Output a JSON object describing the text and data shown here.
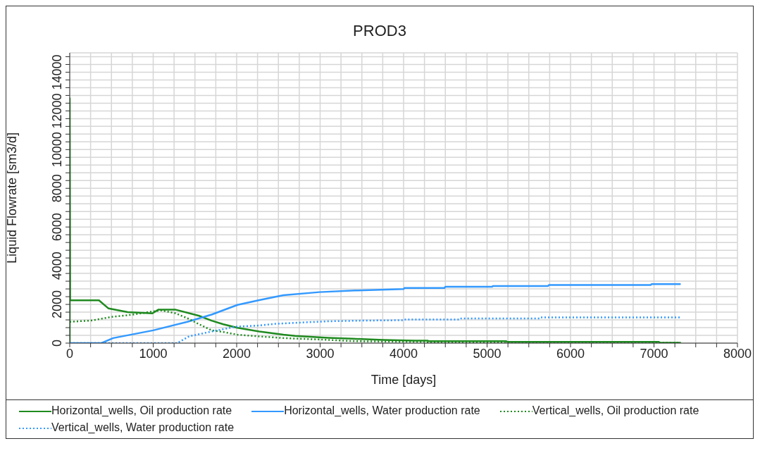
{
  "chart_data": {
    "type": "line",
    "title": "PROD3",
    "xlabel": "Time [days]",
    "ylabel": "Liquid Flowrate [sm3/d]",
    "xlim": [
      0,
      8000
    ],
    "xticks": [
      0,
      {
        "value": 250,
        "label": null
      },
      {
        "value": 500,
        "label": null
      },
      {
        "value": 750,
        "label": null
      },
      1000,
      {
        "value": 1250,
        "label": null
      },
      {
        "value": 1500,
        "label": null
      },
      {
        "value": 1750,
        "label": null
      },
      2000,
      {
        "value": 2250,
        "label": null
      },
      {
        "value": 2500,
        "label": null
      },
      {
        "value": 2750,
        "label": null
      },
      3000,
      {
        "value": 3250,
        "label": null
      },
      {
        "value": 3500,
        "label": null
      },
      {
        "value": 3750,
        "label": null
      },
      4000,
      {
        "value": 4250,
        "label": null
      },
      {
        "value": 4500,
        "label": null
      },
      {
        "value": 4750,
        "label": null
      },
      5000,
      {
        "value": 5250,
        "label": null
      },
      {
        "value": 5500,
        "label": null
      },
      {
        "value": 5750,
        "label": null
      },
      6000,
      {
        "value": 6250,
        "label": null
      },
      {
        "value": 6500,
        "label": null
      },
      {
        "value": 6750,
        "label": null
      },
      7000,
      {
        "value": 7250,
        "label": null
      },
      {
        "value": 7500,
        "label": null
      },
      {
        "value": 7750,
        "label": null
      },
      8000
    ],
    "ylim": [
      0,
      15000
    ],
    "yticks": [
      0,
      {
        "value": 400,
        "label": null
      },
      {
        "value": 800,
        "label": null
      },
      {
        "value": 1200,
        "label": null
      },
      {
        "value": 1600,
        "label": null
      },
      2000,
      {
        "value": 2400,
        "label": null
      },
      {
        "value": 2800,
        "label": null
      },
      {
        "value": 3200,
        "label": null
      },
      {
        "value": 3600,
        "label": null
      },
      4000,
      {
        "value": 4400,
        "label": null
      },
      {
        "value": 4800,
        "label": null
      },
      {
        "value": 5200,
        "label": null
      },
      {
        "value": 5600,
        "label": null
      },
      6000,
      {
        "value": 6400,
        "label": null
      },
      {
        "value": 6800,
        "label": null
      },
      {
        "value": 7200,
        "label": null
      },
      {
        "value": 7600,
        "label": null
      },
      8000,
      {
        "value": 8400,
        "label": null
      },
      {
        "value": 8800,
        "label": null
      },
      {
        "value": 9200,
        "label": null
      },
      {
        "value": 9600,
        "label": null
      },
      10000,
      {
        "value": 10400,
        "label": null
      },
      {
        "value": 10800,
        "label": null
      },
      {
        "value": 11200,
        "label": null
      },
      {
        "value": 11600,
        "label": null
      },
      12000,
      {
        "value": 12400,
        "label": null
      },
      {
        "value": 12800,
        "label": null
      },
      {
        "value": 13200,
        "label": null
      },
      {
        "value": 13600,
        "label": null
      },
      14000,
      {
        "value": 14400,
        "label": null
      },
      {
        "value": 14800,
        "label": null
      }
    ],
    "grid": true,
    "legend": "bottom",
    "marker": "none",
    "series": [
      {
        "name": "Horizontal_wells, Oil production rate",
        "color": "#1f8a1f",
        "line_style": "solid",
        "x": [
          0,
          0,
          5,
          350,
          465,
          695,
          990,
          1060,
          1270,
          1550,
          1700,
          1840,
          2010,
          2270,
          2560,
          2700,
          3100,
          3390,
          3760,
          4130,
          4290,
          4300,
          5230,
          5240,
          7060,
          7070,
          7320
        ],
        "values": [
          0,
          12650,
          2210,
          2210,
          1790,
          1600,
          1540,
          1725,
          1725,
          1410,
          1160,
          975,
          790,
          600,
          435,
          375,
          275,
          225,
          160,
          130,
          130,
          100,
          100,
          60,
          60,
          20,
          20
        ]
      },
      {
        "name": "Horizontal_wells, Water production rate",
        "color": "#3399ff",
        "line_style": "solid",
        "x": [
          0,
          380,
          520,
          1000,
          1410,
          1700,
          2010,
          2270,
          2560,
          2990,
          3420,
          4000,
          4010,
          4490,
          4500,
          5060,
          5070,
          5730,
          5740,
          6960,
          6970,
          7320
        ],
        "values": [
          0,
          0,
          260,
          660,
          1100,
          1475,
          1975,
          2220,
          2475,
          2635,
          2720,
          2790,
          2850,
          2850,
          2910,
          2910,
          2950,
          2950,
          3000,
          3000,
          3050,
          3050
        ]
      },
      {
        "name": "Vertical_wells, Oil production rate",
        "color": "#1f8a1f",
        "line_style": "dotted",
        "x": [
          0,
          265,
          495,
          760,
          990,
          1100,
          1270,
          1410,
          1550,
          1700,
          1840,
          2010,
          2270,
          2560,
          3000,
          3420,
          4130,
          4260,
          4270,
          5200,
          5210,
          7320
        ],
        "values": [
          1100,
          1170,
          1350,
          1475,
          1635,
          1690,
          1540,
          1285,
          975,
          660,
          575,
          435,
          350,
          260,
          185,
          100,
          65,
          65,
          40,
          40,
          20,
          20
        ]
      },
      {
        "name": "Vertical_wells, Water production rate",
        "color": "#3399ff",
        "line_style": "dotted",
        "x": [
          0,
          1290,
          1430,
          1700,
          1990,
          2270,
          2470,
          2760,
          3070,
          3470,
          4000,
          4010,
          4680,
          4690,
          5630,
          5640,
          7320
        ],
        "values": [
          0,
          0,
          350,
          600,
          850,
          910,
          1000,
          1060,
          1125,
          1160,
          1185,
          1220,
          1220,
          1275,
          1275,
          1325,
          1325
        ]
      }
    ]
  }
}
